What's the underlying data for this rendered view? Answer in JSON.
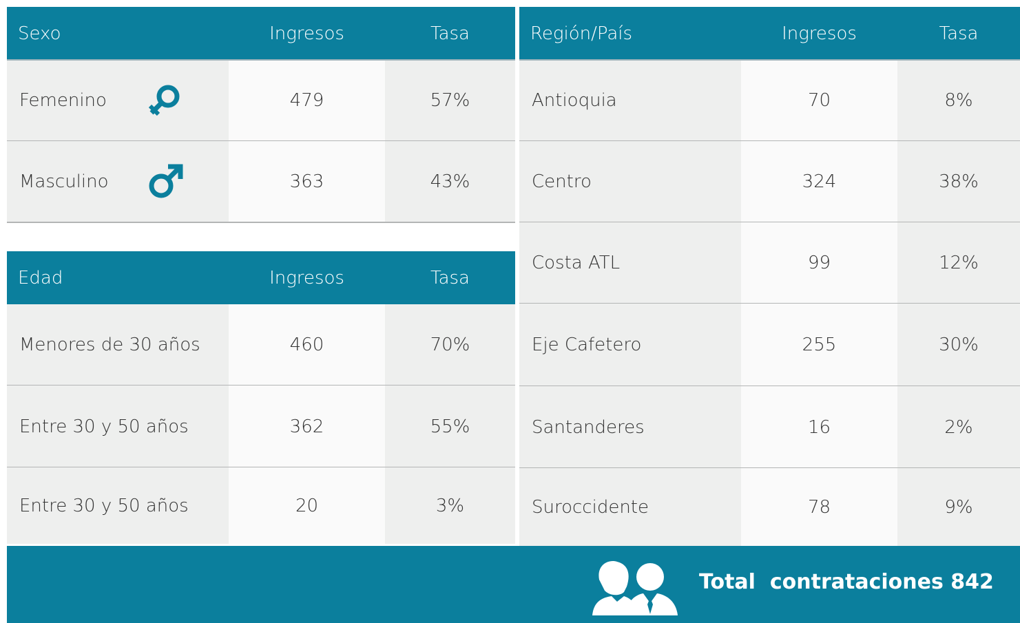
{
  "sexo": {
    "headers": [
      "Sexo",
      "Ingresos",
      "Tasa"
    ],
    "rows": [
      [
        "Femenino",
        "479",
        "57%"
      ],
      [
        "Masculino",
        "363",
        "43%"
      ]
    ]
  },
  "edad": {
    "headers": [
      "Edad",
      "Ingresos",
      "Tasa"
    ],
    "rows": [
      [
        "Menores de 30 años",
        "460",
        "70%"
      ],
      [
        "Entre 30 y 50 años",
        "362",
        "55%"
      ],
      [
        "Entre 30 y 50 años",
        "20",
        "3%"
      ]
    ]
  },
  "region": {
    "headers": [
      "Región/País",
      "Ingresos",
      "Tasa"
    ],
    "rows": [
      [
        "Antioquia",
        "70",
        "8%"
      ],
      [
        "Centro",
        "324",
        "38%"
      ],
      [
        "Costa ATL",
        "99",
        "12%"
      ],
      [
        "Eje Cafetero",
        "255",
        "30%"
      ],
      [
        "Santanderes",
        "16",
        "2%"
      ],
      [
        "Suroccidente",
        "78",
        "9%"
      ]
    ]
  },
  "footer": {
    "total": "Total  contrataciones 842"
  }
}
